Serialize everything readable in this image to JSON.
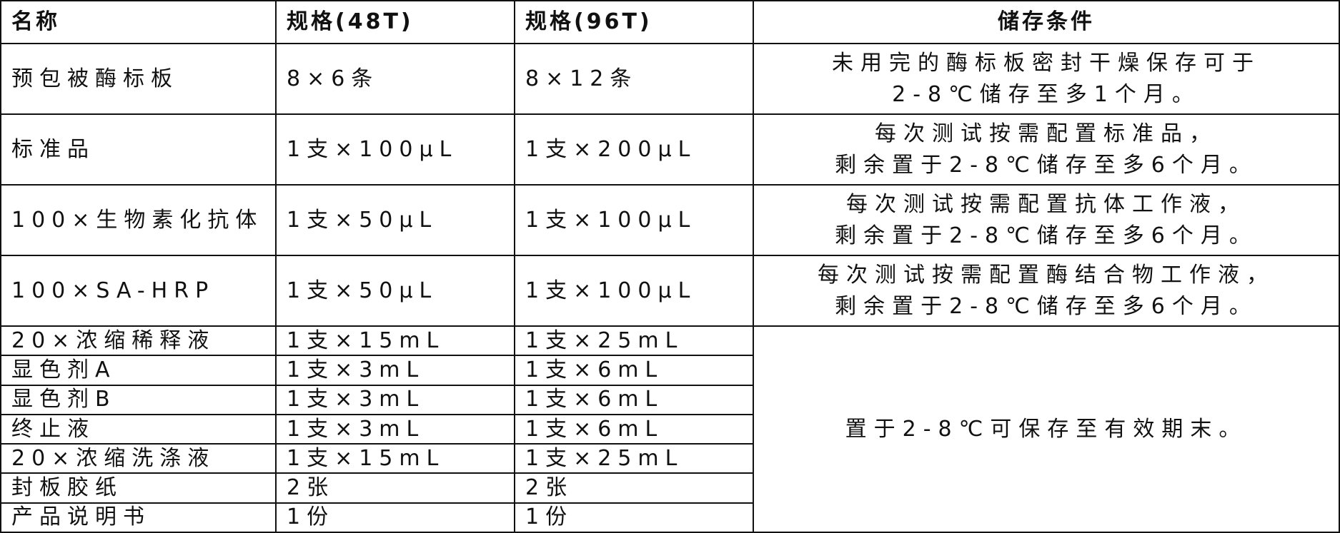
{
  "headers": [
    "名称",
    "规格(48T)",
    "规格(96T)",
    "储存条件"
  ],
  "big_rows": [
    {
      "name": "预包被酶标板",
      "spec48": "8×6条",
      "spec96": "8×12条",
      "storage": [
        "未用完的酶标板密封干燥保存可于",
        "2-8℃储存至多1个月。"
      ]
    },
    {
      "name": "标准品",
      "spec48": "1支×100μL",
      "spec96": "1支×200μL",
      "storage": [
        "每次测试按需配置标准品，",
        "剩余置于2-8℃储存至多6个月。"
      ]
    },
    {
      "name": "100×生物素化抗体",
      "spec48": "1支×50μL",
      "spec96": "1支×100μL",
      "storage": [
        "每次测试按需配置抗体工作液，",
        "剩余置于2-8℃储存至多6个月。"
      ]
    },
    {
      "name": "100×SA-HRP",
      "spec48": "1支×50μL",
      "spec96": "1支×100μL",
      "storage": [
        "每次测试按需配置酶结合物工作液，",
        "剩余置于2-8℃储存至多6个月。"
      ]
    }
  ],
  "small_rows": [
    {
      "name": "20×浓缩稀释液",
      "spec48": "1支×15mL",
      "spec96": "1支×25mL"
    },
    {
      "name": "显色剂A",
      "spec48": "1支×3mL",
      "spec96": "1支×6mL"
    },
    {
      "name": "显色剂B",
      "spec48": "1支×3mL",
      "spec96": "1支×6mL"
    },
    {
      "name": "终止液",
      "spec48": "1支×3mL",
      "spec96": "1支×6mL"
    },
    {
      "name": "20×浓缩洗涤液",
      "spec48": "1支×15mL",
      "spec96": "1支×25mL"
    },
    {
      "name": "封板胶纸",
      "spec48": "2张",
      "spec96": "2张"
    },
    {
      "name": "产品说明书",
      "spec48": "1份",
      "spec96": "1份"
    }
  ],
  "shared_storage": "置于2-8℃可保存至有效期末。"
}
